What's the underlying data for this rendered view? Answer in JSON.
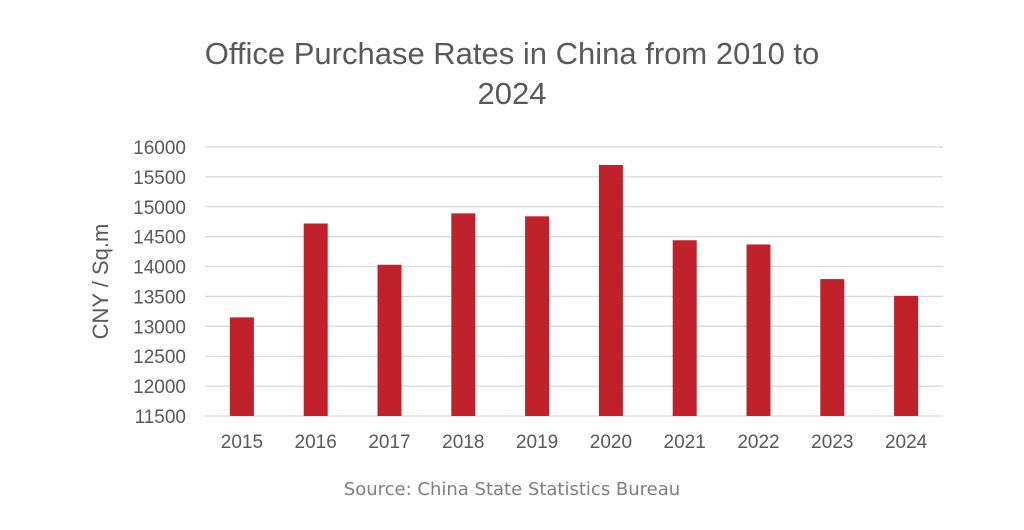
{
  "title_line1": "Office Purchase Rates in China from 2010 to",
  "title_line2": "2024",
  "source": "Source: China State Statistics Bureau",
  "colors": {
    "bar": "#c0212a",
    "grid": "#d9d9d9",
    "text": "#595959"
  },
  "chart_data": {
    "type": "bar",
    "title": "Office Purchase Rates in China from 2010 to 2024",
    "xlabel": "",
    "ylabel": "CNY / Sq.m",
    "categories": [
      "2015",
      "2016",
      "2017",
      "2018",
      "2019",
      "2020",
      "2021",
      "2022",
      "2023",
      "2024"
    ],
    "series": [
      {
        "values": [
          13150,
          14720,
          14030,
          14890,
          14840,
          15700,
          14440,
          14370,
          13790,
          13510
        ]
      }
    ],
    "ylim": [
      11500,
      16000
    ],
    "yticks": [
      "16000",
      "15500",
      "15000",
      "14500",
      "14000",
      "13500",
      "13000",
      "12500",
      "12000",
      "11500"
    ],
    "grid": true,
    "legend": "none"
  }
}
